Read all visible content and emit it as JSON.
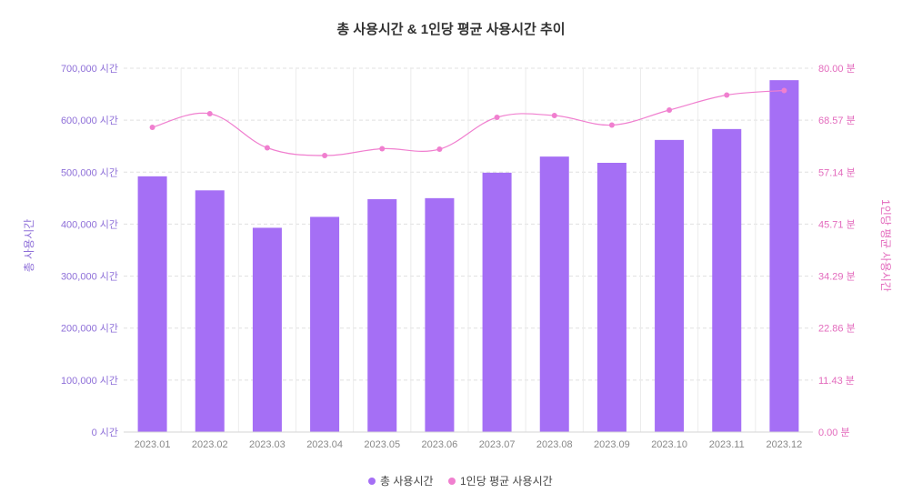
{
  "chart_data": {
    "type": "bar",
    "title": "총 사용시간 & 1인당 평균 사용시간 추이",
    "categories": [
      "2023.01",
      "2023.02",
      "2023.03",
      "2023.04",
      "2023.05",
      "2023.06",
      "2023.07",
      "2023.08",
      "2023.09",
      "2023.10",
      "2023.11",
      "2023.12"
    ],
    "series": [
      {
        "name": "총 사용시간",
        "type": "bar",
        "axis": "left",
        "color": "#a56ff5",
        "values": [
          492000,
          465000,
          393000,
          414000,
          448000,
          450000,
          499000,
          530000,
          518000,
          562000,
          583000,
          677000
        ]
      },
      {
        "name": "1인당 평균 사용시간",
        "type": "line",
        "axis": "right",
        "color": "#f07fcf",
        "values": [
          67.0,
          70.0,
          62.5,
          60.8,
          62.3,
          62.2,
          69.2,
          69.6,
          67.5,
          70.8,
          74.1,
          75.1
        ]
      }
    ],
    "y_left": {
      "label": "총 사용시간",
      "range": [
        0,
        700000
      ],
      "ticks": [
        "0 시간",
        "100,000 시간",
        "200,000 시간",
        "300,000 시간",
        "400,000 시간",
        "500,000 시간",
        "600,000 시간",
        "700,000 시간"
      ]
    },
    "y_right": {
      "label": "1인당 평균 사용시간",
      "range": [
        0,
        80
      ],
      "ticks": [
        "0.00 분",
        "11.43 분",
        "22.86 분",
        "34.29 분",
        "45.71 분",
        "57.14 분",
        "68.57 분",
        "80.00 분"
      ]
    },
    "grid": true,
    "legend": "bottom-center",
    "colors": {
      "left_axis": "#8e6fd8",
      "right_axis": "#e36bbd",
      "grid": "#e0e0e0"
    }
  }
}
